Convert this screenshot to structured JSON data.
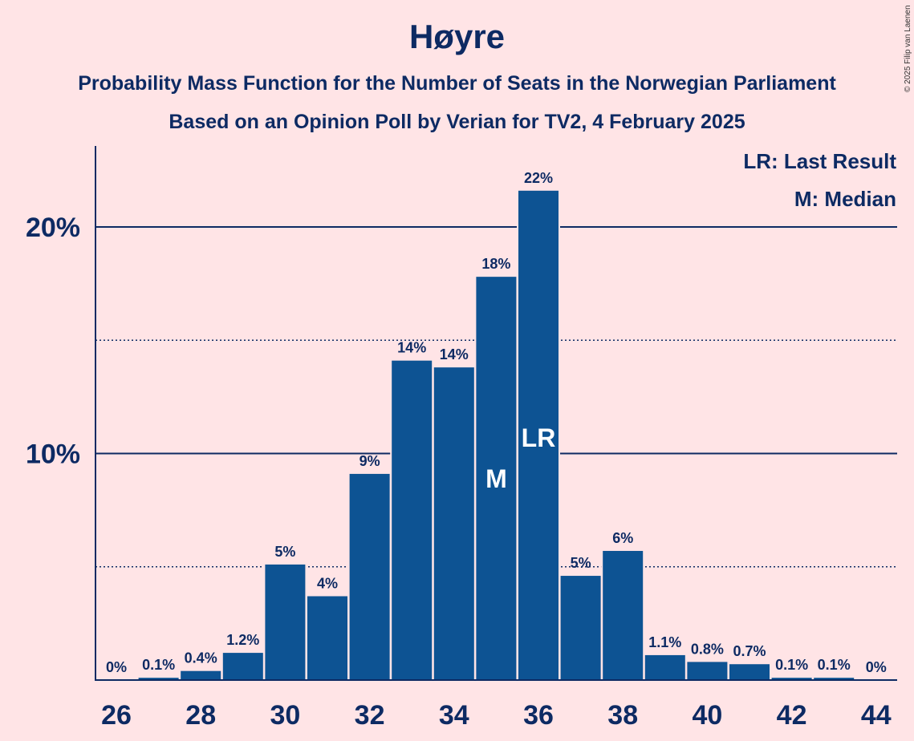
{
  "title": "Høyre",
  "subtitle_1": "Probability Mass Function for the Number of Seats in the Norwegian Parliament",
  "subtitle_2": "Based on an Opinion Poll by Verian for TV2, 4 February 2025",
  "copyright": "© 2025 Filip van Laenen",
  "legend": {
    "last_result": "LR: Last Result",
    "median": "M: Median"
  },
  "colors": {
    "background": "#ffe4e6",
    "bar": "#0d5393",
    "text": "#0d2a63"
  },
  "chart_data": {
    "type": "bar",
    "x": [
      26,
      27,
      28,
      29,
      30,
      31,
      32,
      33,
      34,
      35,
      36,
      37,
      38,
      39,
      40,
      41,
      42,
      43,
      44
    ],
    "values": [
      0,
      0.1,
      0.4,
      1.2,
      5.1,
      3.7,
      9.1,
      14.1,
      13.8,
      17.8,
      21.6,
      4.6,
      5.7,
      1.1,
      0.8,
      0.7,
      0.1,
      0.1,
      0
    ],
    "data_labels": [
      "0%",
      "0.1%",
      "0.4%",
      "1.2%",
      "5%",
      "4%",
      "9%",
      "14%",
      "14%",
      "18%",
      "22%",
      "5%",
      "6%",
      "1.1%",
      "0.8%",
      "0.7%",
      "0.1%",
      "0.1%",
      "0%"
    ],
    "x_ticks": [
      "26",
      "28",
      "30",
      "32",
      "34",
      "36",
      "38",
      "40",
      "42",
      "44"
    ],
    "y_ticks": [
      "10%",
      "20%"
    ],
    "y_tick_values": [
      10,
      20
    ],
    "minor_grid_values": [
      5,
      15
    ],
    "ylim": [
      0,
      23.6
    ],
    "median_seat": 35,
    "median_marker": "M",
    "last_result_seat": 36,
    "last_result_marker": "LR",
    "legend_position": "top-right"
  }
}
